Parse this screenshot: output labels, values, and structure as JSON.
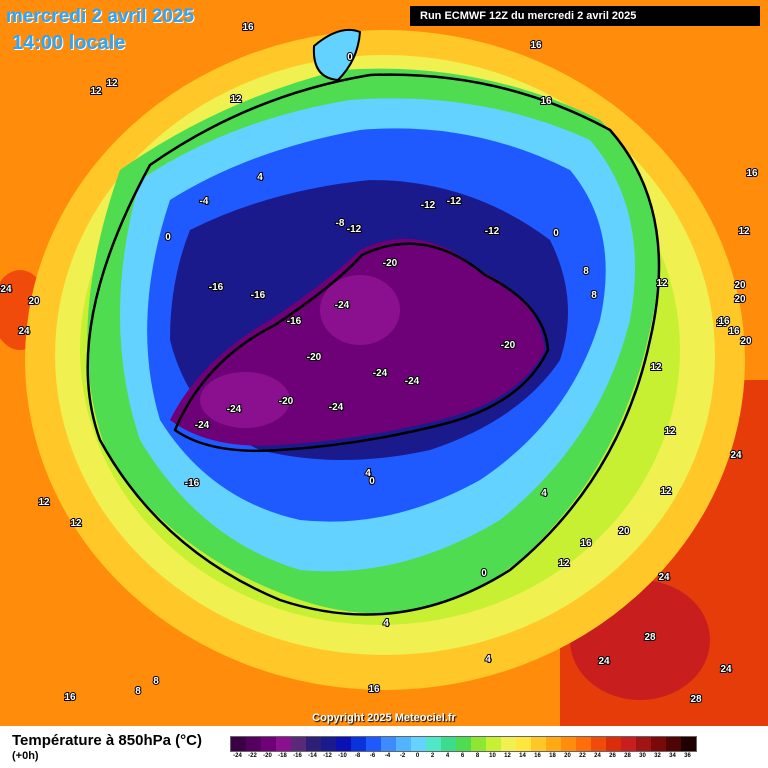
{
  "header": {
    "date": "mercredi 2 avril 2025",
    "time": "14:00 locale",
    "run": "Run ECMWF 12Z du mercredi 2 avril 2025"
  },
  "copyright": "Copyright 2025 Meteociel.fr",
  "footer": {
    "title": "Température à 850hPa (°C)",
    "subtitle": "(+0h)"
  },
  "legend": [
    {
      "label": "-24",
      "color": "#3b0044"
    },
    {
      "label": "-22",
      "color": "#55005f"
    },
    {
      "label": "-20",
      "color": "#6e0078"
    },
    {
      "label": "-18",
      "color": "#8a1090"
    },
    {
      "label": "-16",
      "color": "#5a2a78"
    },
    {
      "label": "-14",
      "color": "#2c1f78"
    },
    {
      "label": "-12",
      "color": "#1a1a8c"
    },
    {
      "label": "-10",
      "color": "#0a10b4"
    },
    {
      "label": "-8",
      "color": "#0a32dc"
    },
    {
      "label": "-6",
      "color": "#1e5aff"
    },
    {
      "label": "-4",
      "color": "#3c8cff"
    },
    {
      "label": "-2",
      "color": "#50b4ff"
    },
    {
      "label": "0",
      "color": "#64d2ff"
    },
    {
      "label": "2",
      "color": "#50e6c8"
    },
    {
      "label": "4",
      "color": "#3cdc8c"
    },
    {
      "label": "6",
      "color": "#50dc50"
    },
    {
      "label": "8",
      "color": "#8ce632"
    },
    {
      "label": "10",
      "color": "#c8f032"
    },
    {
      "label": "12",
      "color": "#f0f050"
    },
    {
      "label": "14",
      "color": "#ffe63c"
    },
    {
      "label": "16",
      "color": "#ffc828"
    },
    {
      "label": "18",
      "color": "#ffaa14"
    },
    {
      "label": "20",
      "color": "#ff8c0a"
    },
    {
      "label": "22",
      "color": "#ff6e0a"
    },
    {
      "label": "24",
      "color": "#f04b0a"
    },
    {
      "label": "26",
      "color": "#dc2d0a"
    },
    {
      "label": "28",
      "color": "#c81e1e"
    },
    {
      "label": "30",
      "color": "#a01414"
    },
    {
      "label": "32",
      "color": "#7a0a0a"
    },
    {
      "label": "34",
      "color": "#500505"
    },
    {
      "label": "36",
      "color": "#1e0000"
    }
  ],
  "map_labels": [
    "16",
    "12",
    "12",
    "12",
    "0",
    "16",
    "16",
    "16",
    "4",
    "-4",
    "0",
    "-16",
    "-16",
    "-16",
    "-8",
    "-12",
    "-12",
    "-12",
    "-12",
    "0",
    "-20",
    "-24",
    "-20",
    "-24",
    "-24",
    "-20",
    "-24",
    "-24",
    "-24",
    "-20",
    "-16",
    "4",
    "0",
    "8",
    "8",
    "12",
    "12",
    "16",
    "20",
    "20",
    "20",
    "16",
    "16",
    "12",
    "12",
    "24",
    "24",
    "20",
    "24",
    "28",
    "24",
    "28",
    "16",
    "8",
    "8",
    "16",
    "4",
    "4",
    "12",
    "12",
    "24",
    "20",
    "24",
    "12",
    "12",
    "0",
    "4",
    "16"
  ]
}
